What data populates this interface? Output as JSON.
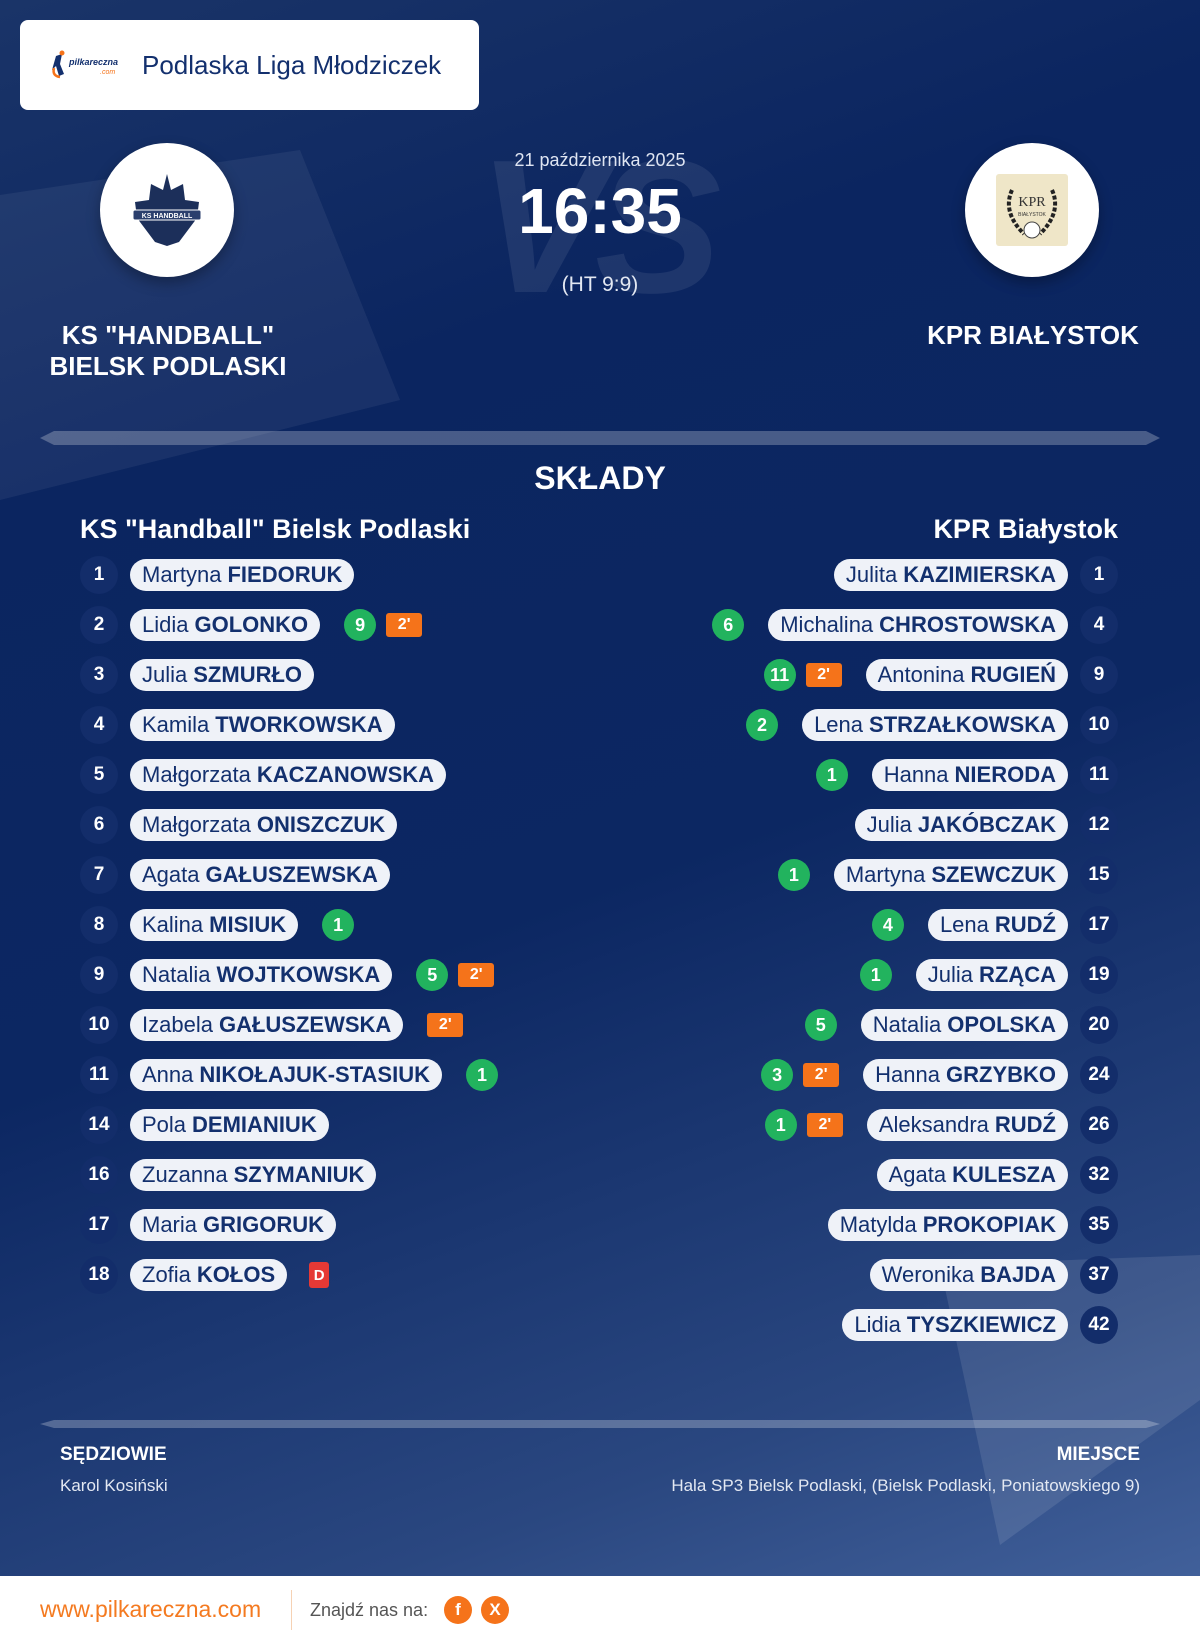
{
  "header": {
    "league": "Podlaska Liga Młodziczek",
    "logo_text": "pilkareczna.com"
  },
  "match": {
    "date": "21 października 2025",
    "score": "16:35",
    "halftime": "(HT 9:9)",
    "vs": "VS"
  },
  "home": {
    "name_line1": "KS \"HANDBALL\"",
    "name_line2": "BIELSK PODLASKI",
    "squad_title": "KS \"Handball\" Bielsk Podlaski",
    "players": [
      {
        "no": "1",
        "first": "Martyna",
        "last": "FIEDORUK"
      },
      {
        "no": "2",
        "first": "Lidia",
        "last": "GOLONKO",
        "goals": "9",
        "pen": "2'"
      },
      {
        "no": "3",
        "first": "Julia",
        "last": "SZMURŁO"
      },
      {
        "no": "4",
        "first": "Kamila",
        "last": "TWORKOWSKA"
      },
      {
        "no": "5",
        "first": "Małgorzata",
        "last": "KACZANOWSKA"
      },
      {
        "no": "6",
        "first": "Małgorzata",
        "last": "ONISZCZUK"
      },
      {
        "no": "7",
        "first": "Agata",
        "last": "GAŁUSZEWSKA"
      },
      {
        "no": "8",
        "first": "Kalina",
        "last": "MISIUK",
        "goals": "1"
      },
      {
        "no": "9",
        "first": "Natalia",
        "last": "WOJTKOWSKA",
        "goals": "5",
        "pen": "2'"
      },
      {
        "no": "10",
        "first": "Izabela",
        "last": "GAŁUSZEWSKA",
        "pen": "2'"
      },
      {
        "no": "11",
        "first": "Anna",
        "last": "NIKOŁAJUK-STASIUK",
        "goals": "1"
      },
      {
        "no": "14",
        "first": "Pola",
        "last": "DEMIANIUK"
      },
      {
        "no": "16",
        "first": "Zuzanna",
        "last": "SZYMANIUK"
      },
      {
        "no": "17",
        "first": "Maria",
        "last": "GRIGORUK"
      },
      {
        "no": "18",
        "first": "Zofia",
        "last": "KOŁOS",
        "dq": "D"
      }
    ]
  },
  "away": {
    "name": "KPR BIAŁYSTOK",
    "squad_title": "KPR Białystok",
    "logo_text": "KPR BIAŁYSTOK",
    "players": [
      {
        "no": "1",
        "first": "Julita",
        "last": "KAZIMIERSKA"
      },
      {
        "no": "4",
        "first": "Michalina",
        "last": "CHROSTOWSKA",
        "goals": "6"
      },
      {
        "no": "9",
        "first": "Antonina",
        "last": "RUGIEŃ",
        "goals": "11",
        "pen": "2'"
      },
      {
        "no": "10",
        "first": "Lena",
        "last": "STRZAŁKOWSKA",
        "goals": "2"
      },
      {
        "no": "11",
        "first": "Hanna",
        "last": "NIERODA",
        "goals": "1"
      },
      {
        "no": "12",
        "first": "Julia",
        "last": "JAKÓBCZAK"
      },
      {
        "no": "15",
        "first": "Martyna",
        "last": "SZEWCZUK",
        "goals": "1"
      },
      {
        "no": "17",
        "first": "Lena",
        "last": "RUDŹ",
        "goals": "4"
      },
      {
        "no": "19",
        "first": "Julia",
        "last": "RZĄCA",
        "goals": "1"
      },
      {
        "no": "20",
        "first": "Natalia",
        "last": "OPOLSKA",
        "goals": "5"
      },
      {
        "no": "24",
        "first": "Hanna",
        "last": "GRZYBKO",
        "goals": "3",
        "pen": "2'"
      },
      {
        "no": "26",
        "first": "Aleksandra",
        "last": "RUDŹ",
        "goals": "1",
        "pen": "2'"
      },
      {
        "no": "32",
        "first": "Agata",
        "last": "KULESZA"
      },
      {
        "no": "35",
        "first": "Matylda",
        "last": "PROKOPIAK"
      },
      {
        "no": "37",
        "first": "Weronika",
        "last": "BAJDA"
      },
      {
        "no": "42",
        "first": "Lidia",
        "last": "TYSZKIEWICZ"
      }
    ]
  },
  "squads_title": "SKŁADY",
  "referees": {
    "label": "SĘDZIOWIE",
    "value": "Karol Kosiński"
  },
  "venue": {
    "label": "MIEJSCE",
    "value": "Hala SP3 Bielsk Podlaski, (Bielsk Podlaski, Poniatowskiego 9)"
  },
  "footer": {
    "url": "www.pilkareczna.com",
    "follow": "Znajdź nas na:",
    "social": [
      {
        "icon": "facebook-icon",
        "label": "f"
      },
      {
        "icon": "x-icon",
        "label": "X"
      }
    ]
  },
  "colors": {
    "background": "#0c2762",
    "accent": "#f5731a",
    "goal": "#22b35e",
    "penalty": "#f5731a",
    "disqualification": "#e53935",
    "pill_text": "#13306e"
  }
}
